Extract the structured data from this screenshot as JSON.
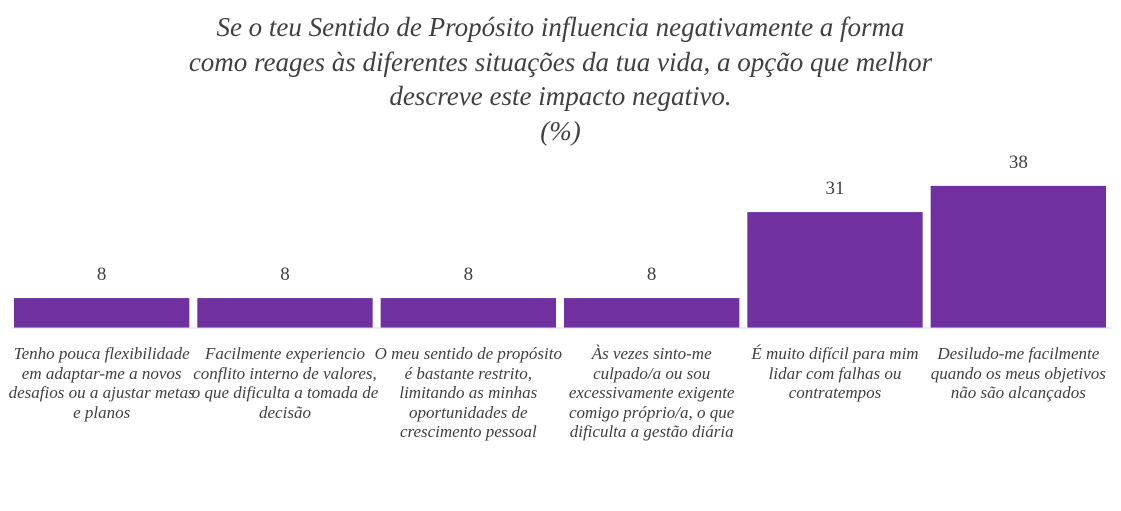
{
  "chart_data": {
    "type": "bar",
    "title": [
      "Se o teu Sentido de Propósito influencia negativamente a forma",
      "como reages às diferentes situações da tua vida, a opção que melhor",
      "descreve este impacto negativo.",
      "(%)"
    ],
    "categories": [
      "Tenho pouca flexibilidade em adaptar-me a novos desafios ou a ajustar metas e planos",
      "Facilmente experiencio conflito interno de valores, o que dificulta a tomada de decisão",
      "O meu sentido de propósito é bastante restrito, limitando as minhas oportunidades de crescimento pessoal",
      "Às vezes sinto-me culpado/a ou sou excessivamente exigente comigo próprio/a, o que dificulta a gestão diária",
      "É muito difícil para mim lidar com falhas ou contratempos",
      "Desiludo-me facilmente quando os meus objetivos não são alcançados"
    ],
    "values": [
      8,
      8,
      8,
      8,
      31,
      38
    ],
    "color": "#7030a0"
  }
}
